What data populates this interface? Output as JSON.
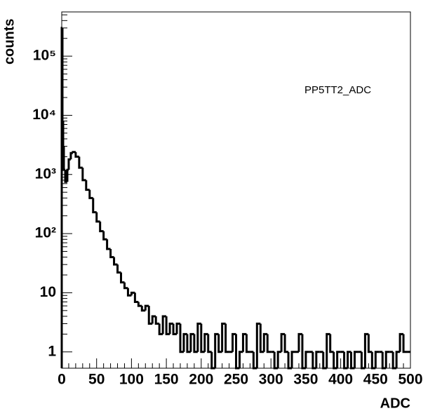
{
  "chart_data": {
    "type": "histogram",
    "annotation": "PP5TT2_ADC",
    "x_label": "ADC",
    "y_label": "counts",
    "bins": [
      0,
      1,
      2,
      3,
      5,
      8,
      10,
      13,
      16,
      20,
      25,
      30,
      35,
      40,
      45,
      50,
      55,
      60,
      65,
      70,
      75,
      80,
      85,
      90,
      95,
      100,
      105,
      110,
      115,
      120,
      125,
      130,
      135,
      140,
      145,
      150,
      155,
      160,
      165,
      170,
      175,
      180,
      185,
      190,
      195,
      200,
      205,
      210,
      215,
      220,
      225,
      230,
      235,
      240,
      245,
      250,
      255,
      260,
      265,
      270,
      275,
      280,
      285,
      290,
      295,
      300,
      305,
      310,
      315,
      320,
      325,
      330,
      335,
      340,
      345,
      350,
      355,
      360,
      365,
      370,
      375,
      380,
      385,
      390,
      395,
      400,
      405,
      410,
      415,
      420,
      425,
      430,
      435,
      440,
      445,
      450,
      455,
      460,
      465,
      470,
      475,
      480,
      485,
      490,
      495,
      500
    ],
    "counts": [
      300000,
      8000,
      3000,
      1200,
      750,
      1200,
      1800,
      2300,
      2400,
      2000,
      1300,
      800,
      550,
      400,
      230,
      160,
      110,
      80,
      55,
      40,
      30,
      22,
      15,
      12,
      9,
      10,
      7,
      6,
      5,
      6,
      3,
      4,
      3,
      2,
      4,
      2,
      3,
      2,
      3,
      1,
      2,
      1,
      2,
      1,
      3,
      1,
      2,
      1,
      0,
      2,
      1,
      3,
      1,
      1,
      2,
      0,
      1,
      2,
      1,
      1,
      0,
      3,
      1,
      2,
      1,
      1,
      0,
      1,
      2,
      1,
      0,
      1,
      1,
      2,
      0,
      1,
      1,
      0,
      1,
      1,
      0,
      2,
      1,
      0,
      1,
      1,
      0,
      1,
      0,
      1,
      1,
      0,
      2,
      1,
      0,
      1,
      1,
      0,
      1,
      1,
      0,
      1,
      2,
      1,
      1
    ],
    "color": "#000000",
    "log_y": true,
    "xlim": [
      0,
      500
    ],
    "xticks": [
      0,
      50,
      100,
      150,
      200,
      250,
      300,
      350,
      400,
      450,
      500
    ],
    "ylim": [
      0.53,
      560000
    ],
    "yticks": [
      1,
      10,
      {
        "value": 100,
        "label": "10²"
      },
      {
        "value": 1000,
        "label": "10³"
      },
      {
        "value": 10000,
        "label": "10⁴"
      },
      {
        "value": 100000,
        "label": "10⁵"
      }
    ]
  }
}
